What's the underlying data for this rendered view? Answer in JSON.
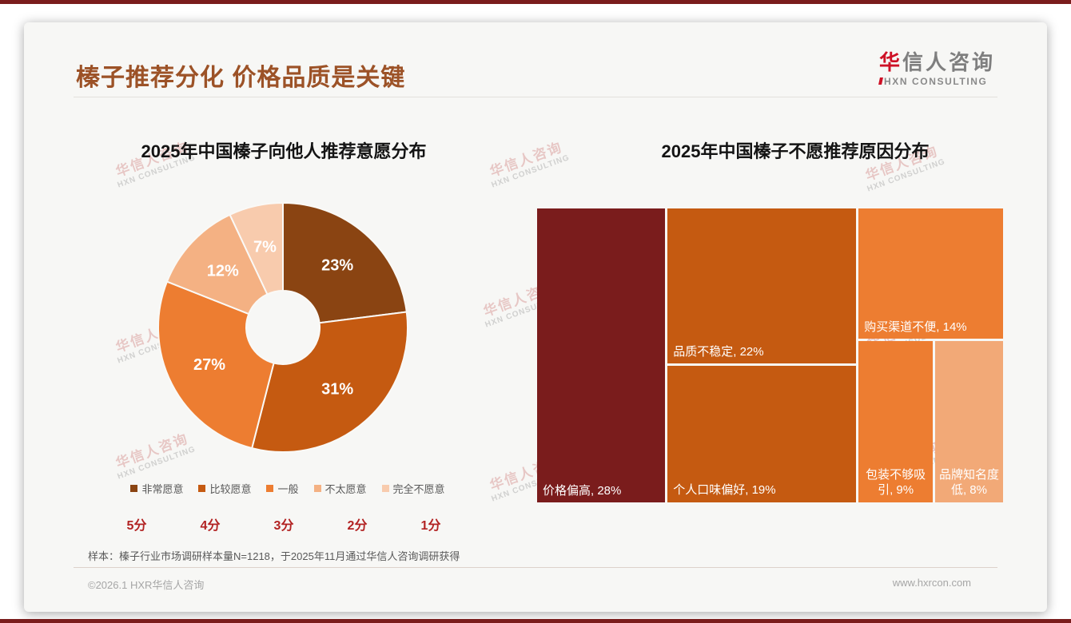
{
  "page": {
    "title": "榛子推荐分化 价格品质是关键",
    "logo": {
      "brand_cn_accent": "华",
      "brand_cn_rest": "信人咨询",
      "brand_en": "HXN CONSULTING"
    },
    "watermark": {
      "line1": "华信人咨询",
      "line2": "HXN CONSULTING"
    },
    "note": "样本：榛子行业市场调研样本量N=1218，于2025年11月通过华信人咨询调研获得",
    "footer": {
      "copyright": "©2026.1 HXR华信人咨询",
      "website": "www.hxrcon.com"
    },
    "colors": {
      "accent_maroon": "#7A1C1C",
      "title_brown": "#9C5227",
      "score_red": "#B22222",
      "logo_red": "#CE1126"
    }
  },
  "chart_data": [
    {
      "type": "pie",
      "subtype": "donut",
      "title": "2025年中国榛子向他人推荐意愿分布",
      "legend_position": "bottom",
      "start_angle_deg": 0,
      "direction": "clockwise",
      "slices": [
        {
          "label": "非常愿意",
          "score": "5分",
          "value": 23,
          "color": "#8A4412",
          "data_label": "23%"
        },
        {
          "label": "比较愿意",
          "score": "4分",
          "value": 31,
          "color": "#C55A11",
          "data_label": "31%"
        },
        {
          "label": "一般",
          "score": "3分",
          "value": 27,
          "color": "#ED7D31",
          "data_label": "27%"
        },
        {
          "label": "不太愿意",
          "score": "2分",
          "value": 12,
          "color": "#F4B183",
          "data_label": "12%"
        },
        {
          "label": "完全不愿意",
          "score": "1分",
          "value": 7,
          "color": "#F8CBAD",
          "data_label": "7%"
        }
      ]
    },
    {
      "type": "treemap",
      "title": "2025年中国榛子不愿推荐原因分布",
      "items": [
        {
          "label": "价格偏高",
          "value": 28,
          "color": "#7A1C1C",
          "data_label": "价格偏高, 28%"
        },
        {
          "label": "品质不稳定",
          "value": 22,
          "color": "#C55A11",
          "data_label": "品质不稳定, 22%"
        },
        {
          "label": "个人口味偏好",
          "value": 19,
          "color": "#C55A11",
          "data_label": "个人口味偏好, 19%"
        },
        {
          "label": "购买渠道不便",
          "value": 14,
          "color": "#ED7D31",
          "data_label": "购买渠道不便, 14%"
        },
        {
          "label": "包装不够吸引",
          "value": 9,
          "color": "#ED7D31",
          "data_label": "包装不够吸引, 9%"
        },
        {
          "label": "品牌知名度低",
          "value": 8,
          "color": "#F2A977",
          "data_label": "品牌知名度低, 8%"
        }
      ]
    }
  ]
}
